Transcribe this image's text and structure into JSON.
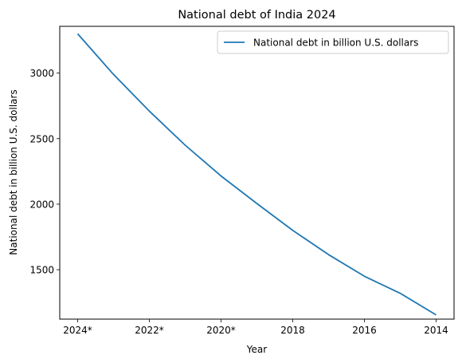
{
  "chart_data": {
    "type": "line",
    "title": "National debt of India 2024",
    "xlabel": "Year",
    "ylabel": "National debt in billion U.S. dollars",
    "categories": [
      "2024*",
      "2023*",
      "2022*",
      "2021*",
      "2020*",
      "2019",
      "2018",
      "2017",
      "2016",
      "2015",
      "2014"
    ],
    "x_tick_labels": [
      "2024*",
      "2022*",
      "2020*",
      "2018",
      "2016",
      "2014"
    ],
    "y_ticks": [
      1500,
      2000,
      2500,
      3000
    ],
    "ylim": [
      1123,
      3357
    ],
    "grid": false,
    "legend_position": "top-right",
    "series": [
      {
        "name": "National debt in billion U.S. dollars",
        "color": "#1f77b4",
        "values": [
          3300,
          2990,
          2710,
          2450,
          2215,
          2005,
          1800,
          1615,
          1450,
          1320,
          1155
        ]
      }
    ]
  }
}
